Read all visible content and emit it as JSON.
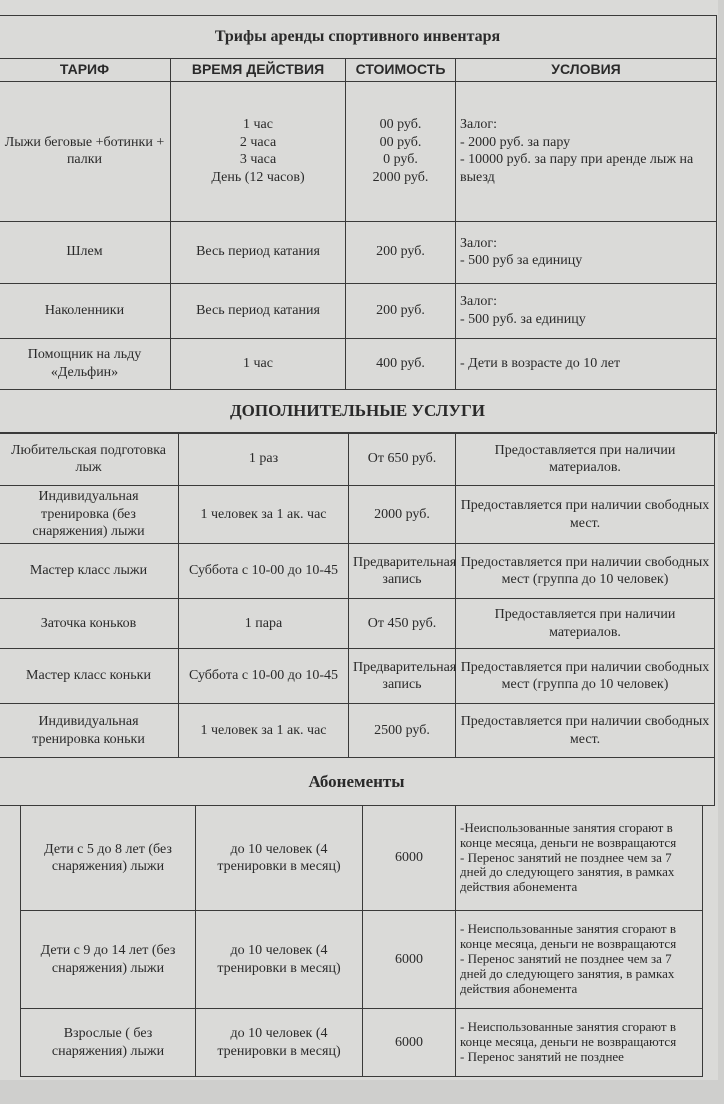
{
  "rental": {
    "title": "Трифы аренды спортивного инвентаря",
    "headers": [
      "ТАРИФ",
      "ВРЕМЯ ДЕЙСТВИЯ",
      "СТОИМОСТЬ",
      "УСЛОВИЯ"
    ],
    "rows": [
      {
        "tariff": "Лыжи беговые +ботинки + палки",
        "time": [
          "1 час",
          "2 часа",
          "3 часа",
          "День (12 часов)"
        ],
        "price": [
          "00 руб.",
          "00 руб.",
          "0 руб.",
          "2000 руб."
        ],
        "conditions": [
          "Залог:",
          "- 2000 руб. за пару",
          "- 10000 руб. за пару при аренде лыж на выезд"
        ]
      },
      {
        "tariff": "Шлем",
        "time": [
          "Весь период катания"
        ],
        "price": [
          "200 руб."
        ],
        "conditions": [
          "Залог:",
          "- 500 руб за единицу"
        ]
      },
      {
        "tariff": "Наколенники",
        "time": [
          "Весь период катания"
        ],
        "price": [
          "200 руб."
        ],
        "conditions": [
          "Залог:",
          "- 500 руб. за единицу"
        ]
      },
      {
        "tariff": "Помощник на льду «Дельфин»",
        "time": [
          "1 час"
        ],
        "price": [
          "400 руб."
        ],
        "conditions": [
          "- Дети в возрасте до 10 лет"
        ]
      }
    ]
  },
  "extra": {
    "title": "ДОПОЛНИТЕЛЬНЫЕ УСЛУГИ",
    "rows": [
      {
        "name": "Любительская подготовка лыж",
        "time": "1 раз",
        "price": "От 650 руб.",
        "conditions": "Предоставляется при наличии материалов."
      },
      {
        "name": "Индивидуальная тренировка (без снаряжения) лыжи",
        "time": "1 человек за 1 ак. час",
        "price": "2000 руб.",
        "conditions": "Предоставляется при наличии свободных мест."
      },
      {
        "name": "Мастер класс лыжи",
        "time": "Суббота с 10-00 до 10-45",
        "price": "Предварительная запись",
        "conditions": "Предоставляется при наличии свободных мест (группа до 10 человек)"
      },
      {
        "name": "Заточка коньков",
        "time": "1 пара",
        "price": "От 450 руб.",
        "conditions": "Предоставляется при наличии материалов."
      },
      {
        "name": "Мастер класс коньки",
        "time": "Суббота с 10-00 до 10-45",
        "price": "Предварительная запись",
        "conditions": "Предоставляется при наличии свободных мест (группа до 10 человек)"
      },
      {
        "name": "Индивидуальная тренировка коньки",
        "time": "1 человек за 1 ак. час",
        "price": "2500 руб.",
        "conditions": "Предоставляется при наличии свободных мест."
      }
    ]
  },
  "subs": {
    "title": "Абонементы",
    "rows": [
      {
        "name": "Дети с 5 до 8 лет (без снаряжения) лыжи",
        "time": "до 10 человек (4 тренировки в месяц)",
        "price": "6000",
        "conditions": [
          "-Неиспользованные занятия сгорают в конце месяца, деньги не возвращаются",
          "- Перенос занятий не позднее чем за 7 дней до следующего занятия, в рамках действия абонемента"
        ]
      },
      {
        "name": "Дети с 9 до 14 лет (без снаряжения) лыжи",
        "time": "до 10 человек (4 тренировки в месяц)",
        "price": "6000",
        "conditions": [
          "- Неиспользованные занятия сгорают в конце месяца, деньги не возвращаются",
          "- Перенос занятий не позднее чем за 7 дней до следующего занятия, в рамках действия абонемента"
        ]
      },
      {
        "name": "Взрослые ( без снаряжения) лыжи",
        "time": "до 10 человек (4 тренировки в месяц)",
        "price": "6000",
        "conditions": [
          "- Неиспользованные занятия сгорают в конце месяца, деньги не возвращаются",
          "- Перенос занятий не позднее"
        ]
      }
    ]
  }
}
